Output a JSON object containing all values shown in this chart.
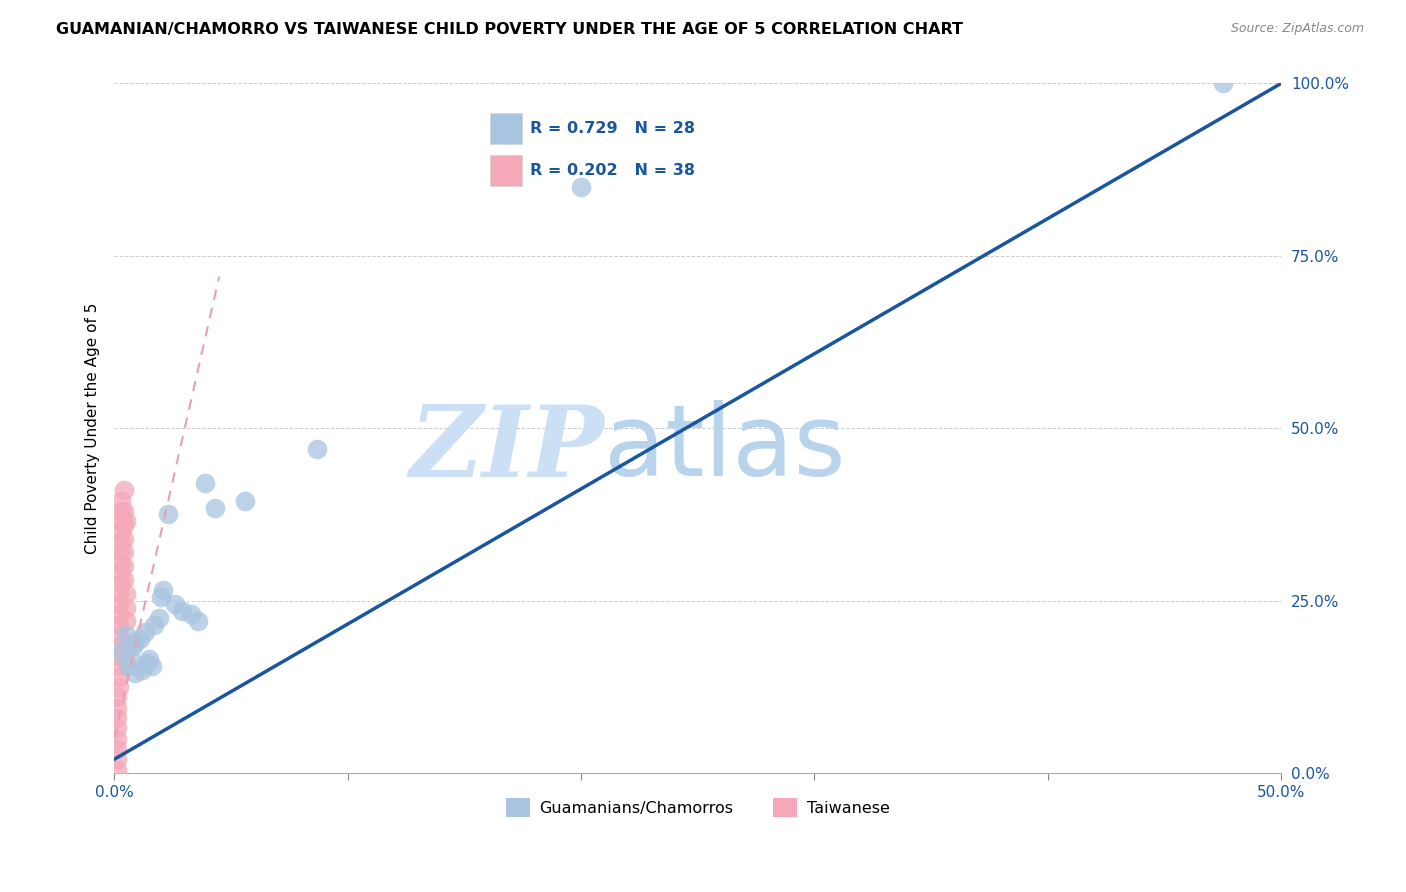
{
  "title": "GUAMANIAN/CHAMORRO VS TAIWANESE CHILD POVERTY UNDER THE AGE OF 5 CORRELATION CHART",
  "source": "Source: ZipAtlas.com",
  "ylabel": "Child Poverty Under the Age of 5",
  "xlim": [
    0,
    0.5
  ],
  "ylim": [
    0,
    1.0
  ],
  "xticks": [
    0.0,
    0.1,
    0.2,
    0.3,
    0.4,
    0.5
  ],
  "yticks": [
    0.0,
    0.25,
    0.5,
    0.75,
    1.0
  ],
  "xtick_labels": [
    "0.0%",
    "",
    "",
    "",
    "",
    "50.0%"
  ],
  "ytick_labels": [
    "0.0%",
    "25.0%",
    "50.0%",
    "75.0%",
    "100.0%"
  ],
  "legend_R1": "R = 0.729",
  "legend_N1": "N = 28",
  "legend_R2": "R = 0.202",
  "legend_N2": "N = 38",
  "guam_color": "#a8c4e0",
  "taiwan_color": "#f4a8b8",
  "regression_blue_color": "#1a56a0",
  "tick_color": "#1a56a0",
  "watermark_zip": "ZIP",
  "watermark_atlas": "atlas",
  "watermark_color": "#cce0f5",
  "guam_x": [
    0.003,
    0.005,
    0.006,
    0.007,
    0.008,
    0.009,
    0.009,
    0.011,
    0.012,
    0.013,
    0.014,
    0.015,
    0.016,
    0.017,
    0.019,
    0.02,
    0.021,
    0.023,
    0.026,
    0.029,
    0.033,
    0.036,
    0.039,
    0.043,
    0.056,
    0.087,
    0.2,
    0.475
  ],
  "guam_y": [
    0.175,
    0.2,
    0.155,
    0.165,
    0.185,
    0.19,
    0.145,
    0.195,
    0.15,
    0.205,
    0.16,
    0.165,
    0.155,
    0.215,
    0.225,
    0.255,
    0.265,
    0.375,
    0.245,
    0.235,
    0.23,
    0.22,
    0.42,
    0.385,
    0.395,
    0.47,
    0.85,
    1.0
  ],
  "taiwan_x": [
    0.001,
    0.001,
    0.001,
    0.001,
    0.001,
    0.001,
    0.001,
    0.001,
    0.002,
    0.002,
    0.002,
    0.002,
    0.002,
    0.002,
    0.002,
    0.002,
    0.002,
    0.002,
    0.003,
    0.003,
    0.003,
    0.003,
    0.003,
    0.003,
    0.003,
    0.003,
    0.003,
    0.004,
    0.004,
    0.004,
    0.004,
    0.004,
    0.004,
    0.004,
    0.005,
    0.005,
    0.005,
    0.005
  ],
  "taiwan_y": [
    0.005,
    0.02,
    0.035,
    0.05,
    0.065,
    0.08,
    0.095,
    0.11,
    0.125,
    0.14,
    0.155,
    0.17,
    0.185,
    0.2,
    0.215,
    0.23,
    0.245,
    0.26,
    0.275,
    0.29,
    0.305,
    0.32,
    0.335,
    0.35,
    0.365,
    0.38,
    0.395,
    0.41,
    0.38,
    0.36,
    0.34,
    0.32,
    0.3,
    0.28,
    0.26,
    0.24,
    0.22,
    0.365
  ],
  "pink_line_x0": 0.0,
  "pink_line_y0": 0.05,
  "pink_line_x1": 0.045,
  "pink_line_y1": 0.72,
  "blue_line_x0": 0.0,
  "blue_line_y0": 0.02,
  "blue_line_x1": 0.5,
  "blue_line_y1": 1.0
}
